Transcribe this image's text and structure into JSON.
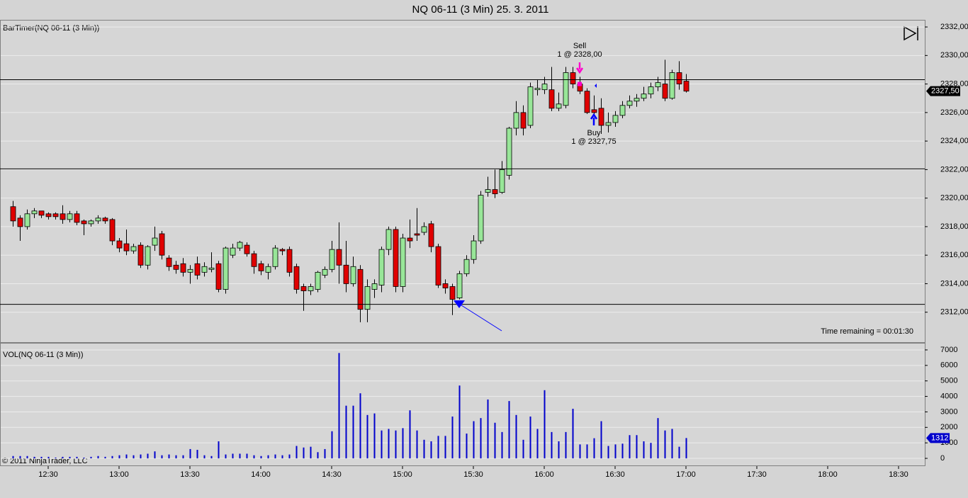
{
  "title": "NQ 06-11 (3 Min)  25. 3. 2011",
  "time_axis": [
    "12:30",
    "13:00",
    "13:30",
    "14:00",
    "14:30",
    "15:00",
    "15:30",
    "16:00",
    "16:30",
    "17:00",
    "17:30",
    "18:00",
    "18:30"
  ],
  "copyright": "© 2011 NinjaTrader, LLC",
  "chart_data": [
    {
      "type": "candlestick",
      "label": "BarTimer(NQ 06-11 (3 Min))",
      "annotation": "Time remaining = 00:01:30",
      "up_color": "#98e698",
      "down_color": "#e00000",
      "ylim": [
        2309.9,
        2332.5
      ],
      "yticks": [
        {
          "value": 2312,
          "label": "2312,00"
        },
        {
          "value": 2314,
          "label": "2314,00"
        },
        {
          "value": 2316,
          "label": "2316,00"
        },
        {
          "value": 2318,
          "label": "2318,00"
        },
        {
          "value": 2320,
          "label": "2320,00"
        },
        {
          "value": 2322,
          "label": "2322,00"
        },
        {
          "value": 2324,
          "label": "2324,00"
        },
        {
          "value": 2326,
          "label": "2326,00"
        },
        {
          "value": 2328,
          "label": "2328,00"
        },
        {
          "value": 2330,
          "label": "2330,00"
        },
        {
          "value": 2332,
          "label": "2332,00"
        }
      ],
      "grid": true,
      "hlines": [
        2328.3,
        2322.05,
        2312.55
      ],
      "last_label": "2327,50",
      "trades": [
        {
          "label": "Sell",
          "detail": "1 @ 2328,00"
        },
        {
          "label": "Buy",
          "detail": "1 @ 2327,75"
        }
      ],
      "open": [
        2319.4,
        2318.6,
        2318.0,
        2318.9,
        2319.1,
        2318.9,
        2318.9,
        2318.9,
        2318.5,
        2318.9,
        2318.4,
        2318.2,
        2318.4,
        2318.6,
        2318.5,
        2317.0,
        2316.8,
        2316.3,
        2316.7,
        2315.3,
        2316.7,
        2317.5,
        2315.8,
        2315.3,
        2315.4,
        2314.8,
        2315.4,
        2314.8,
        2315.0,
        2315.4,
        2313.6,
        2316.0,
        2316.5,
        2316.7,
        2316.1,
        2315.4,
        2314.8,
        2315.2,
        2316.4,
        2316.4,
        2315.2,
        2313.8,
        2313.5,
        2313.6,
        2314.6,
        2315.0,
        2316.4,
        2315.3,
        2314.0,
        2315.0,
        2312.2,
        2313.6,
        2313.9,
        2316.4,
        2317.8,
        2313.8,
        2317.2,
        2317.5,
        2317.6,
        2318.2,
        2316.6,
        2314.0,
        2313.8,
        2313.0,
        2314.7,
        2315.7,
        2317.0,
        2320.4,
        2320.6,
        2320.4,
        2321.6,
        2324.9,
        2326.0,
        2325.1,
        2327.6,
        2327.6,
        2327.6,
        2326.3,
        2326.5,
        2328.8,
        2328.0,
        2327.5,
        2326.2,
        2326.3,
        2325.1,
        2325.3,
        2325.8,
        2326.5,
        2326.8,
        2327.0,
        2327.3,
        2327.8,
        2328.0,
        2327.0,
        2328.8,
        2328.2
      ],
      "high": [
        2319.8,
        2318.8,
        2319.2,
        2319.3,
        2319.1,
        2319.0,
        2319.0,
        2319.5,
        2319.1,
        2319.1,
        2318.5,
        2318.5,
        2318.8,
        2318.7,
        2318.6,
        2317.2,
        2317.8,
        2316.8,
        2316.9,
        2316.7,
        2318.0,
        2317.7,
        2316.0,
        2315.6,
        2315.8,
        2315.3,
        2315.9,
        2315.5,
        2316.2,
        2315.6,
        2316.6,
        2316.8,
        2317.0,
        2316.9,
        2316.3,
        2315.6,
        2315.4,
        2316.7,
        2316.5,
        2316.6,
        2315.4,
        2314.0,
        2314.0,
        2314.9,
        2315.2,
        2317.0,
        2318.3,
        2317.0,
        2315.9,
        2315.3,
        2314.3,
        2314.3,
        2316.6,
        2318.0,
        2318.0,
        2317.5,
        2318.5,
        2319.3,
        2318.3,
        2318.4,
        2316.8,
        2314.3,
        2314.0,
        2314.9,
        2316.0,
        2317.4,
        2320.5,
        2321.5,
        2322.0,
        2322.6,
        2325.0,
        2326.8,
        2326.5,
        2328.1,
        2328.3,
        2328.5,
        2329.2,
        2327.4,
        2329.2,
        2329.2,
        2328.5,
        2327.7,
        2327.2,
        2327.0,
        2326.0,
        2326.1,
        2326.8,
        2327.2,
        2327.3,
        2327.8,
        2328.1,
        2328.5,
        2329.7,
        2329.0,
        2329.6,
        2328.7
      ],
      "low": [
        2318.0,
        2317.0,
        2317.8,
        2318.6,
        2318.6,
        2318.5,
        2318.5,
        2318.2,
        2318.3,
        2318.1,
        2317.4,
        2318.0,
        2318.2,
        2318.2,
        2316.7,
        2316.2,
        2316.0,
        2316.1,
        2315.1,
        2315.0,
        2316.3,
        2315.7,
        2314.9,
        2314.7,
        2314.5,
        2314.0,
        2314.3,
        2314.5,
        2314.8,
        2313.4,
        2313.3,
        2315.8,
        2316.3,
        2315.9,
        2314.7,
        2314.6,
        2314.3,
        2315.0,
        2316.0,
        2314.5,
        2313.3,
        2312.1,
        2313.2,
        2313.4,
        2314.4,
        2314.8,
        2314.0,
        2313.4,
        2313.8,
        2311.3,
        2311.3,
        2313.0,
        2313.4,
        2316.0,
        2313.4,
        2313.4,
        2316.5,
        2317.0,
        2317.4,
        2316.2,
        2313.7,
        2313.3,
        2311.8,
        2312.9,
        2314.5,
        2315.4,
        2316.8,
        2320.1,
        2320.0,
        2320.3,
        2321.3,
        2324.4,
        2324.4,
        2324.9,
        2327.2,
        2327.3,
        2326.1,
        2326.1,
        2326.3,
        2327.7,
        2327.3,
        2325.9,
        2325.8,
        2324.5,
        2324.6,
        2325.0,
        2325.6,
        2326.3,
        2326.4,
        2326.8,
        2327.0,
        2327.5,
        2326.8,
        2326.9,
        2327.6,
        2327.4
      ],
      "close": [
        2318.4,
        2318.0,
        2318.9,
        2319.1,
        2318.8,
        2318.7,
        2318.7,
        2318.5,
        2318.9,
        2318.3,
        2318.2,
        2318.4,
        2318.6,
        2318.4,
        2317.0,
        2316.5,
        2316.3,
        2316.6,
        2315.3,
        2316.6,
        2317.2,
        2316.0,
        2315.2,
        2315.0,
        2314.8,
        2315.0,
        2314.6,
        2315.2,
        2315.1,
        2313.6,
        2316.5,
        2316.5,
        2316.9,
        2316.1,
        2315.2,
        2314.9,
        2315.2,
        2316.5,
        2316.3,
        2314.8,
        2313.6,
        2313.5,
        2313.8,
        2314.8,
        2315.0,
        2316.4,
        2315.3,
        2314.0,
        2315.2,
        2312.2,
        2313.8,
        2314.0,
        2316.4,
        2317.8,
        2313.8,
        2317.2,
        2317.0,
        2317.4,
        2318.0,
        2316.6,
        2313.9,
        2313.7,
        2312.9,
        2314.7,
        2315.7,
        2317.0,
        2320.2,
        2320.6,
        2320.3,
        2322.0,
        2324.9,
        2326.0,
        2324.9,
        2327.8,
        2327.7,
        2328.0,
        2326.3,
        2326.6,
        2328.8,
        2328.0,
        2327.5,
        2326.0,
        2326.0,
        2325.1,
        2325.3,
        2325.8,
        2326.5,
        2326.8,
        2327.0,
        2327.3,
        2327.8,
        2328.1,
        2327.0,
        2328.8,
        2328.0,
        2327.5
      ]
    },
    {
      "type": "bar",
      "label": "VOL(NQ 06-11 (3 Min))",
      "color": "#0000cc",
      "ylim": [
        -455,
        7455
      ],
      "yticks": [
        0,
        1000,
        2000,
        3000,
        4000,
        5000,
        6000,
        7000
      ],
      "grid": true,
      "values": [
        150,
        150,
        150,
        100,
        100,
        100,
        50,
        100,
        100,
        100,
        50,
        100,
        150,
        100,
        150,
        200,
        250,
        200,
        250,
        300,
        450,
        200,
        250,
        200,
        200,
        600,
        550,
        200,
        150,
        1100,
        250,
        300,
        300,
        300,
        200,
        150,
        200,
        250,
        200,
        250,
        800,
        700,
        750,
        400,
        600,
        1750,
        6800,
        3400,
        3400,
        4200,
        2800,
        2900,
        1800,
        1900,
        1800,
        1950,
        3100,
        1800,
        1200,
        1100,
        1450,
        1450,
        2700,
        4700,
        1600,
        2400,
        2600,
        3800,
        2300,
        1700,
        3700,
        2800,
        1200,
        2700,
        1900,
        4400,
        1700,
        1100,
        1700,
        3200,
        900,
        900,
        1300,
        2400,
        800,
        900,
        950,
        1500,
        1500,
        1100,
        1000,
        2600,
        1800,
        1900,
        750,
        1312
      ]
    }
  ]
}
